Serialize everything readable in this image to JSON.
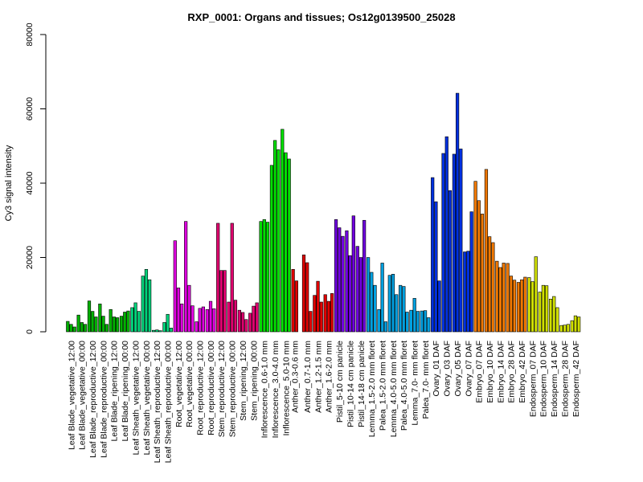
{
  "chart_data": {
    "type": "bar",
    "title": "RXP_0001: Organs and tissues; Os12g0139500_25028",
    "xlabel": "",
    "ylabel": "Cy3 signal intensity",
    "ylim": [
      0,
      80000
    ],
    "yticks": [
      0,
      20000,
      40000,
      60000,
      80000
    ],
    "grid": false,
    "legend": "none",
    "groups": [
      {
        "label": "Leaf Blade_vegetative_12:00",
        "color": "#00b200",
        "values": [
          2800,
          2000,
          1300
        ]
      },
      {
        "label": "Leaf Blade_vegetative_00:00",
        "color": "#00b200",
        "values": [
          4500,
          2500,
          2000
        ]
      },
      {
        "label": "Leaf Blade_reproductive_12:00",
        "color": "#00b200",
        "values": [
          8300,
          5500,
          4000
        ]
      },
      {
        "label": "Leaf Blade_reproductive_00:00",
        "color": "#00b200",
        "values": [
          7500,
          4200,
          2000
        ]
      },
      {
        "label": "Leaf Blade_ripening_12:00",
        "color": "#00b200",
        "values": [
          6000,
          4000,
          3800
        ]
      },
      {
        "label": "Leaf Blade_ripening_00:00",
        "color": "#00b200",
        "values": [
          4200,
          5300,
          5600
        ]
      },
      {
        "label": "Leaf Sheath_vegetative_12:00",
        "color": "#00d27a",
        "values": [
          6500,
          7800,
          5500
        ]
      },
      {
        "label": "Leaf Sheath_vegetative_00:00",
        "color": "#00d27a",
        "values": [
          15000,
          16800,
          14000
        ]
      },
      {
        "label": "Leaf Sheath_reproductive_12:00",
        "color": "#00d27a",
        "values": [
          400,
          500,
          300
        ]
      },
      {
        "label": "Leaf Sheath_reproductive_00:00",
        "color": "#00d27a",
        "values": [
          2500,
          4700,
          1000
        ]
      },
      {
        "label": "Root_vegetative_12:00",
        "color": "#e000e0",
        "values": [
          24500,
          11800,
          7500
        ]
      },
      {
        "label": "Root_vegetative_00:00",
        "color": "#e000e0",
        "values": [
          29700,
          12500,
          7000
        ]
      },
      {
        "label": "Root_reproductive_12:00",
        "color": "#e000e0",
        "values": [
          2700,
          6300,
          6700
        ]
      },
      {
        "label": "Root_reproductive_00:00",
        "color": "#e000e0",
        "values": [
          6000,
          8200,
          6200
        ]
      },
      {
        "label": "Stem_reproductive_12:00",
        "color": "#e0006f",
        "values": [
          29200,
          16500,
          16500
        ]
      },
      {
        "label": "Stem_reproductive_00:00",
        "color": "#e0006f",
        "values": [
          8000,
          29200,
          8500
        ]
      },
      {
        "label": "Stem_ripening_12:00",
        "color": "#e0006f",
        "values": [
          5800,
          5200,
          3300
        ]
      },
      {
        "label": "Stem_ripening_00:00",
        "color": "#e0006f",
        "values": [
          5000,
          6900,
          7800
        ]
      },
      {
        "label": "Inflorescence_0.6-1.0 mm",
        "color": "#00e000",
        "values": [
          29700,
          30200,
          29500
        ]
      },
      {
        "label": "Inflorescence_3.0-4.0 mm",
        "color": "#00e000",
        "values": [
          44800,
          51500,
          49000
        ]
      },
      {
        "label": "Inflorescence_5.0-10 mm",
        "color": "#00e000",
        "values": [
          54500,
          48200,
          46500
        ]
      },
      {
        "label": "Anther_0.3-0.6 mm",
        "color": "#e00000",
        "values": [
          16800,
          13700
        ]
      },
      {
        "label": "Anther_0.7-1.0 mm",
        "color": "#e00000",
        "values": [
          20700,
          18600,
          5500
        ]
      },
      {
        "label": "Anther_1.2-1.5 mm",
        "color": "#e00000",
        "values": [
          9800,
          13600,
          8000
        ]
      },
      {
        "label": "Anther_1.6-2.0 mm",
        "color": "#e00000",
        "values": [
          10000,
          8200,
          10300
        ]
      },
      {
        "label": "Pistil_5-10 cm panicle",
        "color": "#7000e0",
        "values": [
          30200,
          28000,
          25700
        ]
      },
      {
        "label": "Pistil_10-14 cm panicle",
        "color": "#7000e0",
        "values": [
          27200,
          20500,
          31200
        ]
      },
      {
        "label": "Pistil_14-18 cm panicle",
        "color": "#7000e0",
        "values": [
          23000,
          20000,
          30000
        ]
      },
      {
        "label": "Lemma_1.5-2.0 mm floret",
        "color": "#00a0e0",
        "values": [
          20000,
          16000,
          12500
        ]
      },
      {
        "label": "Palea_1.5-2.0 mm floret",
        "color": "#00a0e0",
        "values": [
          6000,
          18500,
          2700
        ]
      },
      {
        "label": "Lemma_4.0-5.0 mm floret",
        "color": "#00a0e0",
        "values": [
          15200,
          15500,
          10000
        ]
      },
      {
        "label": "Palea_4.0-5.0 mm floret",
        "color": "#00a0e0",
        "values": [
          12500,
          12200,
          5300
        ]
      },
      {
        "label": "Lemma_7.0- mm floret",
        "color": "#00a0e0",
        "values": [
          5800,
          9000,
          5500
        ]
      },
      {
        "label": "Palea_7.0- mm floret",
        "color": "#00a0e0",
        "values": [
          5600,
          5700,
          3800
        ]
      },
      {
        "label": "Ovary_01 DAF",
        "color": "#0030e0",
        "values": [
          41500,
          35000,
          13700
        ]
      },
      {
        "label": "Ovary_03 DAF",
        "color": "#0030e0",
        "values": [
          48000,
          52500,
          38000
        ]
      },
      {
        "label": "Ovary_05 DAF",
        "color": "#0030e0",
        "values": [
          47800,
          64200,
          49200
        ]
      },
      {
        "label": "Ovary_07 DAF",
        "color": "#0030e0",
        "values": [
          21500,
          21700,
          32300
        ]
      },
      {
        "label": "Embryo_07 DAF",
        "color": "#f07800",
        "values": [
          40500,
          35300,
          31700
        ]
      },
      {
        "label": "Embryo_10 DAF",
        "color": "#f07800",
        "values": [
          43700,
          25600,
          24000
        ]
      },
      {
        "label": "Embryo_14 DAF",
        "color": "#f07800",
        "values": [
          19000,
          17300,
          18500
        ]
      },
      {
        "label": "Embryo_28 DAF",
        "color": "#f07800",
        "values": [
          18400,
          15000,
          13900
        ]
      },
      {
        "label": "Embryo_42 DAF",
        "color": "#f07800",
        "values": [
          13300,
          14000,
          14700
        ]
      },
      {
        "label": "Endosperm_07 DAF",
        "color": "#d0e000",
        "values": [
          14600,
          13500,
          20200
        ]
      },
      {
        "label": "Endosperm_10 DAF",
        "color": "#d0e000",
        "values": [
          10700,
          12500,
          12400
        ]
      },
      {
        "label": "Endosperm_14 DAF",
        "color": "#d0e000",
        "values": [
          8800,
          9500,
          6500
        ]
      },
      {
        "label": "Endosperm_28 DAF",
        "color": "#d0e000",
        "values": [
          1700,
          1800,
          2000
        ]
      },
      {
        "label": "Endosperm_42 DAF",
        "color": "#d0e000",
        "values": [
          3000,
          4300,
          4000
        ]
      }
    ]
  }
}
